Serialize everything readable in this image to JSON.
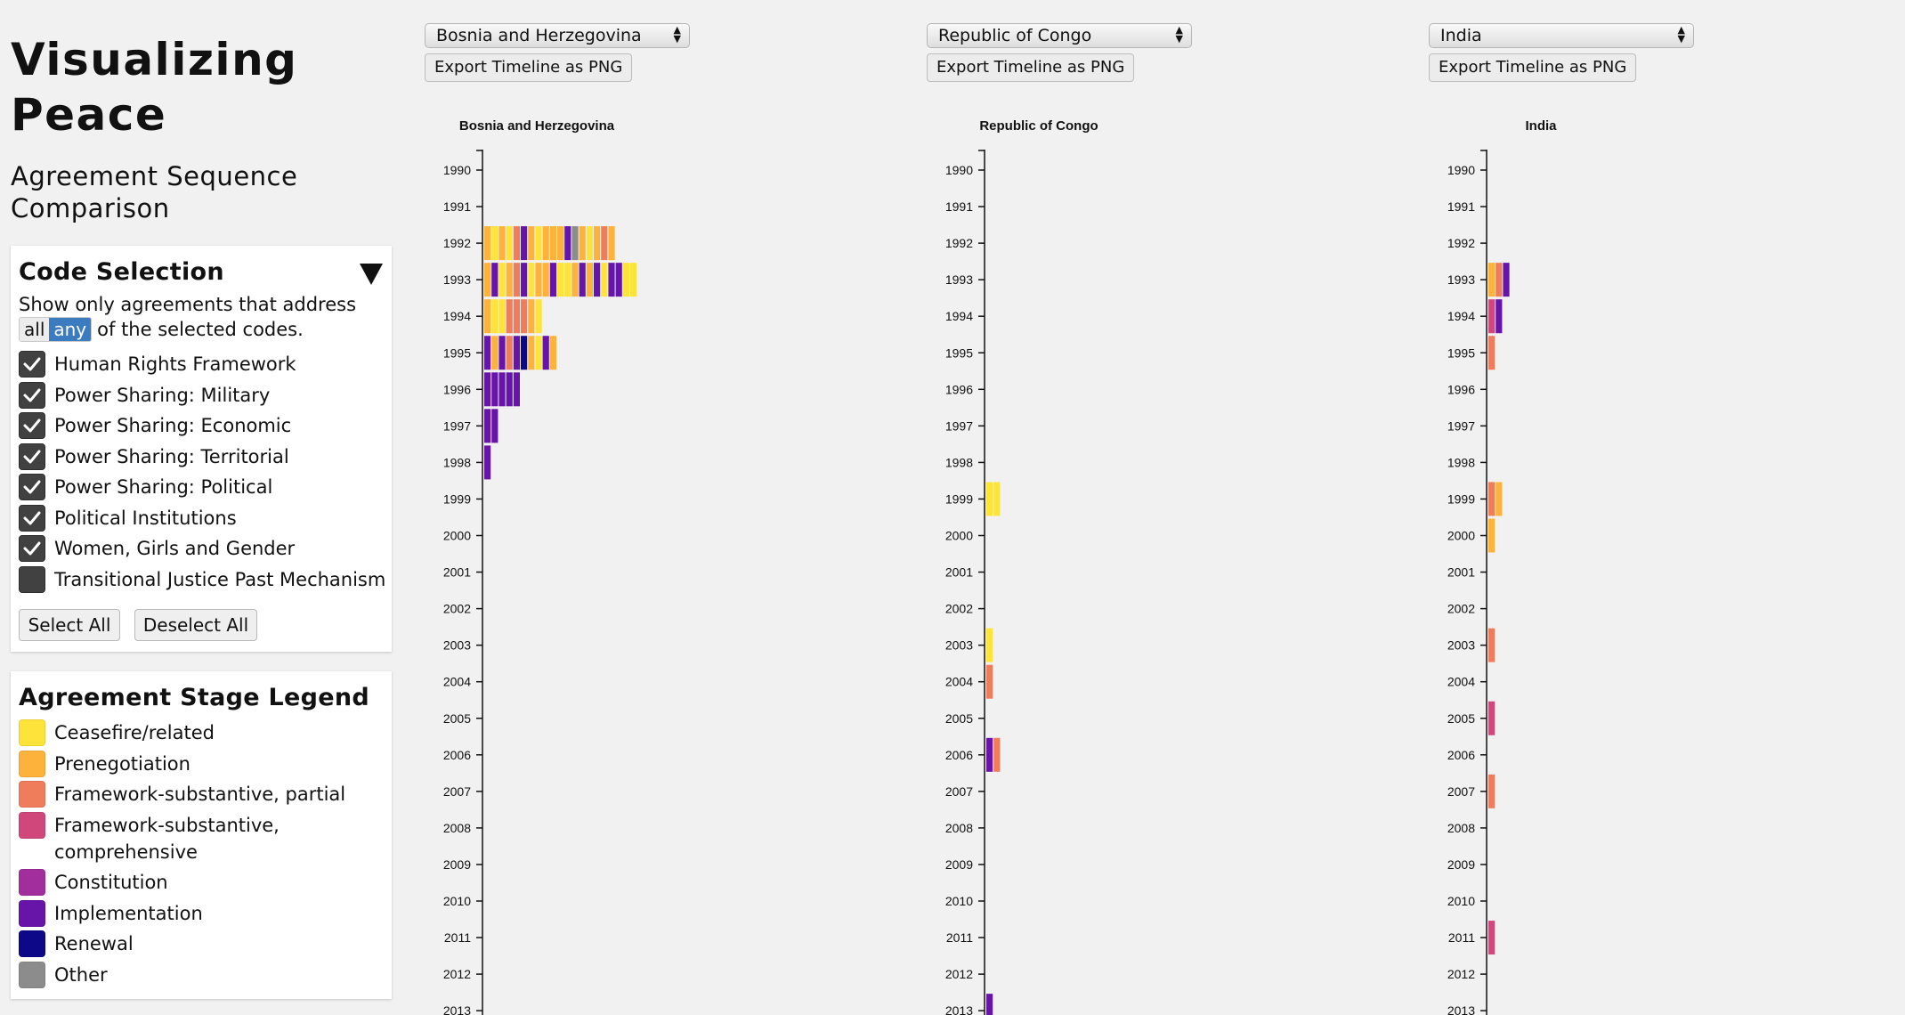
{
  "title": "Visualizing Peace",
  "subtitle": "Agreement Sequence Comparison",
  "code_selection": {
    "heading": "Code Selection",
    "instruction_1": "Show only agreements that address",
    "mode_all": "all",
    "mode_any": "any",
    "selected_mode": "any",
    "instruction_2": "of the selected codes.",
    "codes": [
      {
        "label": "Human Rights Framework",
        "checked": true
      },
      {
        "label": "Power Sharing: Military",
        "checked": true
      },
      {
        "label": "Power Sharing: Economic",
        "checked": true
      },
      {
        "label": "Power Sharing: Territorial",
        "checked": true
      },
      {
        "label": "Power Sharing: Political",
        "checked": true
      },
      {
        "label": "Political Institutions",
        "checked": true
      },
      {
        "label": "Women, Girls and Gender",
        "checked": true
      },
      {
        "label": "Transitional Justice Past Mechanism",
        "checked": false
      }
    ],
    "select_all_label": "Select All",
    "deselect_all_label": "Deselect All"
  },
  "legend": {
    "heading": "Agreement Stage Legend",
    "items": [
      {
        "key": "cea",
        "label": "Ceasefire/related",
        "color": "#fde33a"
      },
      {
        "key": "pre",
        "label": "Prenegotiation",
        "color": "#fdb23c"
      },
      {
        "key": "fsp",
        "label": "Framework-substantive, partial",
        "color": "#ef7c5a"
      },
      {
        "key": "fsc",
        "label": "Framework-substantive, comprehensive",
        "color": "#d0477b"
      },
      {
        "key": "con",
        "label": "Constitution",
        "color": "#a22e9d"
      },
      {
        "key": "imp",
        "label": "Implementation",
        "color": "#6714a8"
      },
      {
        "key": "ren",
        "label": "Renewal",
        "color": "#0d0887"
      },
      {
        "key": "oth",
        "label": "Other",
        "color": "#8c8c8c"
      }
    ]
  },
  "export_label": "Export Timeline as PNG",
  "chart_data": [
    {
      "type": "bar",
      "title": "Bosnia and Herzegovina",
      "selected_country": "Bosnia and Herzegovina",
      "years": [
        1990,
        1991,
        1992,
        1993,
        1994,
        1995,
        1996,
        1997,
        1998,
        1999,
        2000,
        2001,
        2002,
        2003,
        2004,
        2005,
        2006,
        2007,
        2008,
        2009,
        2010,
        2011,
        2012,
        2013
      ],
      "agreements_by_year": {
        "1992": [
          "pre",
          "cea",
          "pre",
          "cea",
          "fsp",
          "imp",
          "pre",
          "cea",
          "pre",
          "pre",
          "pre",
          "imp",
          "oth",
          "pre",
          "cea",
          "pre",
          "fsp",
          "pre"
        ],
        "1993": [
          "pre",
          "imp",
          "cea",
          "pre",
          "fsp",
          "imp",
          "cea",
          "pre",
          "pre",
          "imp",
          "cea",
          "cea",
          "pre",
          "imp",
          "pre",
          "imp",
          "cea",
          "imp",
          "imp",
          "cea",
          "cea"
        ],
        "1994": [
          "pre",
          "cea",
          "cea",
          "fsp",
          "fsp",
          "fsp",
          "pre",
          "cea"
        ],
        "1995": [
          "imp",
          "pre",
          "imp",
          "fsp",
          "imp",
          "ren",
          "pre",
          "cea",
          "imp",
          "pre"
        ],
        "1996": [
          "imp",
          "imp",
          "imp",
          "imp",
          "imp"
        ],
        "1997": [
          "imp",
          "imp"
        ],
        "1998": [
          "imp"
        ]
      }
    },
    {
      "type": "bar",
      "title": "Republic of Congo",
      "selected_country": "Republic of Congo",
      "years": [
        1990,
        1991,
        1992,
        1993,
        1994,
        1995,
        1996,
        1997,
        1998,
        1999,
        2000,
        2001,
        2002,
        2003,
        2004,
        2005,
        2006,
        2007,
        2008,
        2009,
        2010,
        2011,
        2012,
        2013
      ],
      "agreements_by_year": {
        "1999": [
          "cea",
          "cea"
        ],
        "2003": [
          "cea"
        ],
        "2004": [
          "fsp"
        ],
        "2006": [
          "imp",
          "fsp"
        ],
        "2013": [
          "imp"
        ]
      }
    },
    {
      "type": "bar",
      "title": "India",
      "selected_country": "India",
      "years": [
        1990,
        1991,
        1992,
        1993,
        1994,
        1995,
        1996,
        1997,
        1998,
        1999,
        2000,
        2001,
        2002,
        2003,
        2004,
        2005,
        2006,
        2007,
        2008,
        2009,
        2010,
        2011,
        2012,
        2013
      ],
      "agreements_by_year": {
        "1993": [
          "pre",
          "fsp",
          "imp"
        ],
        "1994": [
          "fsc",
          "imp"
        ],
        "1995": [
          "fsp"
        ],
        "1999": [
          "fsp",
          "pre"
        ],
        "2000": [
          "pre"
        ],
        "2003": [
          "fsp"
        ],
        "2005": [
          "fsc"
        ],
        "2007": [
          "fsp"
        ],
        "2011": [
          "fsc"
        ]
      }
    }
  ]
}
